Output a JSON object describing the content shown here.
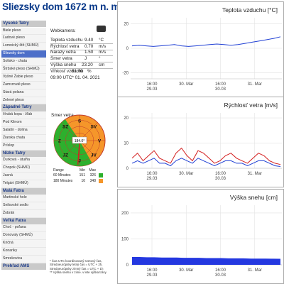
{
  "page_title": "Sliezsky dom 1672 m n. m.",
  "sidebar": {
    "sections": [
      {
        "label": "Vysoké Tatry",
        "items": [
          "Biele pleso",
          "Ľadové pleso",
          "Lomnický štít (SHMÚ)",
          "Sliezsky dom",
          "Solisko - chata",
          "Štrbské pleso (SHMÚ)",
          "Vyšné Žabie pleso",
          "Zamrznuté pleso",
          "Stará polana",
          "Zelené pleso"
        ]
      },
      {
        "label": "Západné Tatry",
        "items": [
          "Hrubá kopa - žľab",
          "Pod Klinom",
          "Salatín - dolina",
          "Žiarska chata",
          "Príslop"
        ]
      },
      {
        "label": "Nízke Tatry",
        "items": [
          "Ďurková - útulňa",
          "Chopok (SHMÚ)",
          "Jasná",
          "Telgárt (SHMÚ)"
        ]
      },
      {
        "label": "Malá Fatra",
        "items": [
          "Martinské hole",
          "Snilovské sedlo",
          "Žobrák"
        ]
      },
      {
        "label": "Veľká Fatra",
        "items": [
          "Choč - poľana",
          "Donovaly (SHMÚ)",
          "Kričná",
          "Konariky",
          "Smrekovica"
        ]
      },
      {
        "label": "Prehľad AMS",
        "items": []
      }
    ],
    "active_item": "Sliezsky dom"
  },
  "readings": {
    "webcam_label": "Webkamera:",
    "rows": [
      {
        "label": "Teplota vzduchu",
        "value": "9.40",
        "unit": "°C"
      },
      {
        "label": "Rýchlosť vetra",
        "value": "0.70",
        "unit": "m/s"
      },
      {
        "label": "Nárazy vetra",
        "value": "1.50",
        "unit": "m/s"
      },
      {
        "label": "Smer vetra",
        "value": "J",
        "unit": "°"
      },
      {
        "label": "Výška snehu",
        "value": "23.20",
        "unit": "cm"
      },
      {
        "label": "Vlhkosť vzduchu",
        "value": "81.00",
        "unit": "%"
      }
    ],
    "timestamp": "09:00 UTC* 01. 04. 2021"
  },
  "compass": {
    "title": "Smer vetra",
    "center_value": "184.0°",
    "directions": [
      "S",
      "SV",
      "V",
      "JV",
      "J",
      "JZ",
      "Z",
      "SZ"
    ],
    "legend_header": {
      "range": "Range",
      "min": "Min",
      "max": "Max"
    },
    "legend_rows": [
      {
        "range": "60 Minutes",
        "min": "151",
        "max": "326",
        "color": "#2db02d"
      },
      {
        "range": "180 Minutes",
        "min": "10",
        "max": "348",
        "color": "#f5962a"
      }
    ]
  },
  "footnote": {
    "line1": "* Čas UTC koordinovaný svetový čas, Stredoeurópsky letný čas = UTC + 2h, Stredoeurópsky zimný čas = UTC + 1h",
    "line2": "** Výška snehu v zime. v lete výška trávy"
  },
  "chart_data": [
    {
      "type": "line",
      "title": "Teplota vzduchu [°C]",
      "yticks": [
        20,
        0,
        -20
      ],
      "ylim": [
        -25,
        25
      ],
      "x_ticks": [
        {
          "label": "16:00",
          "sub": "29.03"
        },
        {
          "label": "30. Mar",
          "sub": ""
        },
        {
          "label": "16:00",
          "sub": "30.03"
        },
        {
          "label": "31. Mar",
          "sub": ""
        }
      ],
      "series": [
        {
          "color": "#1f3fd4",
          "values": [
            2,
            2.5,
            2,
            1.5,
            2,
            2.5,
            3,
            2,
            1.5,
            2,
            2.5,
            3,
            3.5,
            3,
            2.5,
            3,
            4,
            5,
            6,
            7,
            8,
            9.4
          ]
        }
      ]
    },
    {
      "type": "line",
      "title": "Rýchlosť vetra [m/s]",
      "yticks": [
        20,
        10,
        0
      ],
      "ylim": [
        0,
        22
      ],
      "x_ticks": [
        {
          "label": "16:00",
          "sub": "29.03"
        },
        {
          "label": "30. Mar",
          "sub": ""
        },
        {
          "label": "16:00",
          "sub": "30.03"
        },
        {
          "label": "31. Mar",
          "sub": ""
        }
      ],
      "series": [
        {
          "color": "#d42020",
          "values": [
            4,
            6,
            3,
            5,
            7,
            4,
            3,
            2,
            6,
            8,
            5,
            3,
            7,
            6,
            4,
            2,
            3,
            5,
            6,
            4,
            3,
            2,
            4,
            6,
            5,
            3,
            2,
            1.5
          ]
        },
        {
          "color": "#1f3fd4",
          "values": [
            2,
            3,
            2,
            3,
            4,
            2,
            2,
            1,
            3,
            4,
            3,
            2,
            4,
            3,
            2,
            1,
            2,
            3,
            3,
            2,
            2,
            1,
            2,
            3,
            3,
            2,
            1,
            0.7
          ]
        }
      ]
    },
    {
      "type": "area",
      "title": "Výška snehu [cm]",
      "yticks": [
        200,
        100,
        0
      ],
      "ylim": [
        0,
        230
      ],
      "x_ticks": [
        {
          "label": "16:00",
          "sub": "29.03"
        },
        {
          "label": "30. Mar",
          "sub": ""
        },
        {
          "label": "16:00",
          "sub": "30.03"
        },
        {
          "label": "31. Mar",
          "sub": ""
        }
      ],
      "series": [
        {
          "color": "#2438e0",
          "values": [
            30,
            30,
            29,
            29,
            28,
            28,
            28,
            27,
            27,
            27,
            26,
            26,
            26,
            25,
            25,
            25,
            24,
            24,
            24,
            23.5,
            23.2
          ]
        }
      ]
    }
  ]
}
